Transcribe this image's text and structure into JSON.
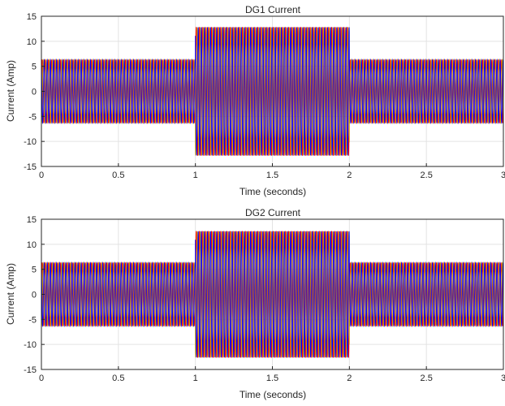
{
  "chart_data": [
    {
      "type": "line",
      "title": "DG1 Current",
      "xlabel": "Time (seconds)",
      "ylabel": "Current (Amp)",
      "xlim": [
        0,
        3
      ],
      "ylim": [
        -15,
        15
      ],
      "xticks": [
        0,
        0.5,
        1,
        1.5,
        2,
        2.5,
        3
      ],
      "xtick_labels": [
        "0",
        "0.5",
        "1",
        "1.5",
        "2",
        "2.5",
        "3"
      ],
      "yticks": [
        -15,
        -10,
        -5,
        0,
        5,
        10,
        15
      ],
      "ytick_labels": [
        "-15",
        "-10",
        "-5",
        "0",
        "5",
        "10",
        "15"
      ],
      "grid": true,
      "frequency_hz": 50,
      "segments": [
        {
          "t_start": 0,
          "t_end": 1,
          "amplitude": 6.3
        },
        {
          "t_start": 1,
          "t_end": 2,
          "amplitude": 12.8
        },
        {
          "t_start": 2,
          "t_end": 3,
          "amplitude": 6.3
        }
      ],
      "series": [
        {
          "phase_deg": 0,
          "color": "#ff0000"
        },
        {
          "phase_deg": -120,
          "color": "#c8a400"
        },
        {
          "phase_deg": 120,
          "color": "#0000ff"
        }
      ]
    },
    {
      "type": "line",
      "title": "DG2 Current",
      "xlabel": "Time (seconds)",
      "ylabel": "Current (Amp)",
      "xlim": [
        0,
        3
      ],
      "ylim": [
        -15,
        15
      ],
      "xticks": [
        0,
        0.5,
        1,
        1.5,
        2,
        2.5,
        3
      ],
      "xtick_labels": [
        "0",
        "0.5",
        "1",
        "1.5",
        "2",
        "2.5",
        "3"
      ],
      "yticks": [
        -15,
        -10,
        -5,
        0,
        5,
        10,
        15
      ],
      "ytick_labels": [
        "-15",
        "-10",
        "-5",
        "0",
        "5",
        "10",
        "15"
      ],
      "grid": true,
      "frequency_hz": 50,
      "segments": [
        {
          "t_start": 0,
          "t_end": 1,
          "amplitude": 6.3
        },
        {
          "t_start": 1,
          "t_end": 2,
          "amplitude": 12.6
        },
        {
          "t_start": 2,
          "t_end": 3,
          "amplitude": 6.3
        }
      ],
      "series": [
        {
          "phase_deg": 0,
          "color": "#ff0000"
        },
        {
          "phase_deg": -120,
          "color": "#c8a400"
        },
        {
          "phase_deg": 120,
          "color": "#0000ff"
        }
      ]
    }
  ]
}
